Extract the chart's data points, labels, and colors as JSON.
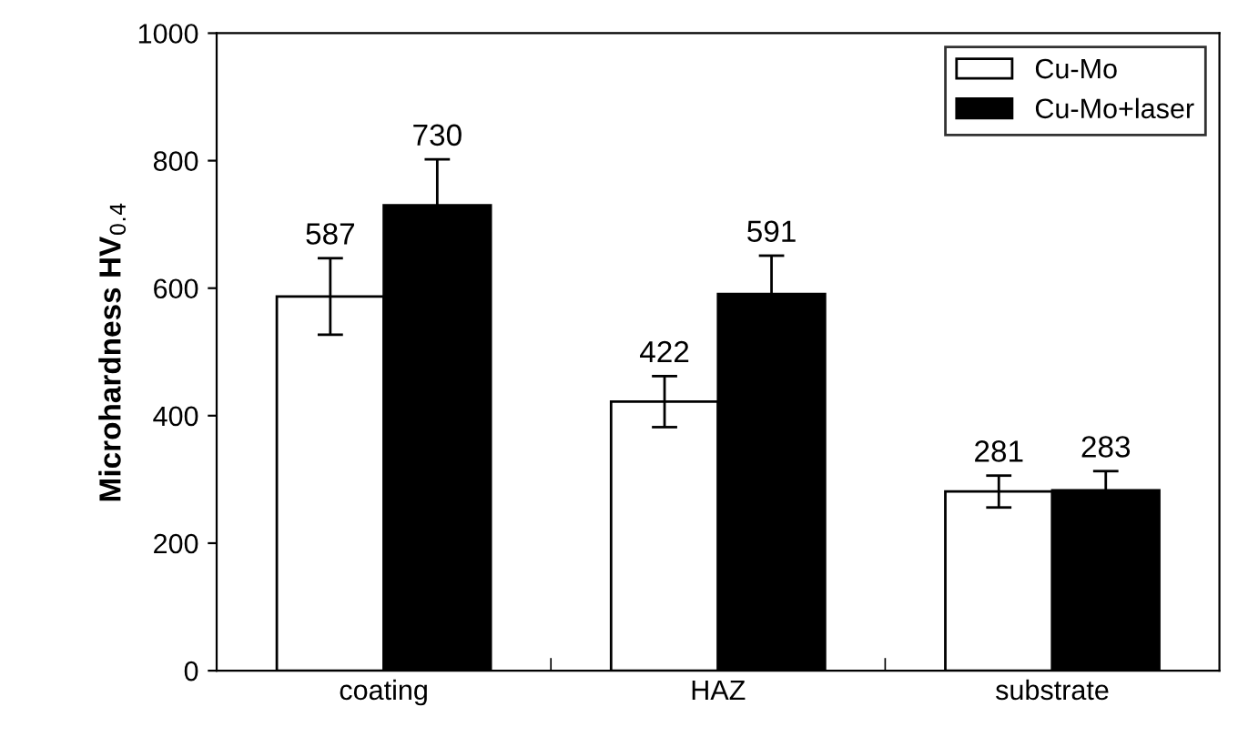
{
  "chart_data": {
    "type": "bar",
    "ylabel": "Microhardness HV$_{0.4}$",
    "categories": [
      "coating",
      "HAZ",
      "substrate"
    ],
    "series": [
      {
        "name": "Cu-Mo",
        "color": "#ffffff",
        "values": [
          587,
          422,
          281
        ],
        "errors": [
          60,
          40,
          25
        ]
      },
      {
        "name": "Cu-Mo+laser",
        "color": "#000000",
        "values": [
          730,
          591,
          283
        ],
        "errors": [
          72,
          60,
          30
        ]
      }
    ],
    "ylim": [
      0,
      1000
    ],
    "yticks": [
      0,
      200,
      400,
      600,
      800,
      1000
    ],
    "data_labels": true,
    "legend": "top right",
    "grid": false
  }
}
